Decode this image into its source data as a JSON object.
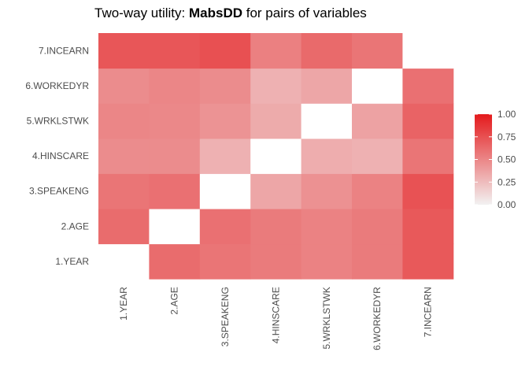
{
  "chart_data": {
    "type": "heatmap",
    "title_prefix": "Two-way utility: ",
    "title_bold": "MabsDD",
    "title_suffix": " for pairs of variables",
    "x_categories": [
      "1.YEAR",
      "2.AGE",
      "3.SPEAKENG",
      "4.HINSCARE",
      "5.WRKLSTWK",
      "6.WORKEDYR",
      "7.INCEARN"
    ],
    "y_categories": [
      "1.YEAR",
      "2.AGE",
      "3.SPEAKENG",
      "4.HINSCARE",
      "5.WRKLSTWK",
      "6.WORKEDYR",
      "7.INCEARN"
    ],
    "values": [
      [
        null,
        0.62,
        0.58,
        0.55,
        0.52,
        0.55,
        0.71
      ],
      [
        0.62,
        null,
        0.6,
        0.55,
        0.52,
        0.55,
        0.71
      ],
      [
        0.58,
        0.6,
        null,
        0.35,
        0.45,
        0.52,
        0.74
      ],
      [
        0.47,
        0.47,
        0.3,
        null,
        0.32,
        0.3,
        0.58
      ],
      [
        0.5,
        0.49,
        0.44,
        0.33,
        null,
        0.37,
        0.66
      ],
      [
        0.47,
        0.5,
        0.47,
        0.3,
        0.35,
        null,
        0.6
      ],
      [
        0.72,
        0.72,
        0.75,
        0.53,
        0.63,
        0.58,
        null
      ]
    ],
    "colorscale": {
      "low": "#f2f2f2",
      "high": "#e41a1c",
      "min": 0,
      "max": 1
    },
    "missing_color": "#ffffff",
    "legend": {
      "position": "right",
      "ticks": [
        "1.00",
        "0.75",
        "0.50",
        "0.25",
        "0.00"
      ],
      "tick_values": [
        1,
        0.75,
        0.5,
        0.25,
        0
      ]
    }
  }
}
